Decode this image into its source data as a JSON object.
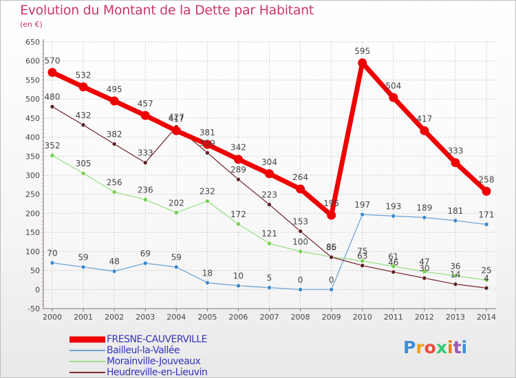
{
  "header": {
    "title": "Evolution du Montant de la Dette par Habitant",
    "subtitle": "(en €)"
  },
  "logo": {
    "text": "Proxiti",
    "colors": [
      "#3b8fd8",
      "#f39c12",
      "#e74c3c",
      "#2ecc71",
      "#e67e22",
      "#9b59b6",
      "#3b8fd8"
    ]
  },
  "chart_data": {
    "type": "line",
    "x": [
      2000,
      2001,
      2002,
      2003,
      2004,
      2005,
      2006,
      2007,
      2008,
      2009,
      2010,
      2011,
      2012,
      2013,
      2014
    ],
    "ylim": [
      -50,
      650
    ],
    "yticks": [
      -50,
      0,
      50,
      100,
      150,
      200,
      250,
      300,
      350,
      400,
      450,
      500,
      550,
      600,
      650
    ],
    "grid": true,
    "legend_position": "bottom-left",
    "series": [
      {
        "name": "FRESNE-CAUVERVILLE",
        "color": "#ee0000",
        "marker": "#ee0000",
        "values": [
          570,
          532,
          495,
          457,
          417,
          381,
          342,
          304,
          264,
          195,
          595,
          504,
          417,
          333,
          258
        ]
      },
      {
        "name": "Bailleul-la-Vallée",
        "color": "#6fa3d0",
        "marker": "#3c88cc",
        "values": [
          70,
          59,
          48,
          69,
          59,
          18,
          10,
          5,
          0,
          0,
          197,
          193,
          189,
          181,
          171
        ]
      },
      {
        "name": "Morainville-Jouveaux",
        "color": "#9be08a",
        "marker": "#74cf4a",
        "values": [
          352,
          305,
          256,
          236,
          202,
          232,
          172,
          121,
          100,
          86,
          75,
          61,
          47,
          36,
          25
        ]
      },
      {
        "name": "Heudreville-en-Lieuvin",
        "color": "#7a2f36",
        "marker": "#5e1f24",
        "values": [
          480,
          432,
          382,
          333,
          427,
          359,
          289,
          223,
          153,
          85,
          63,
          46,
          30,
          14,
          4
        ]
      }
    ]
  }
}
